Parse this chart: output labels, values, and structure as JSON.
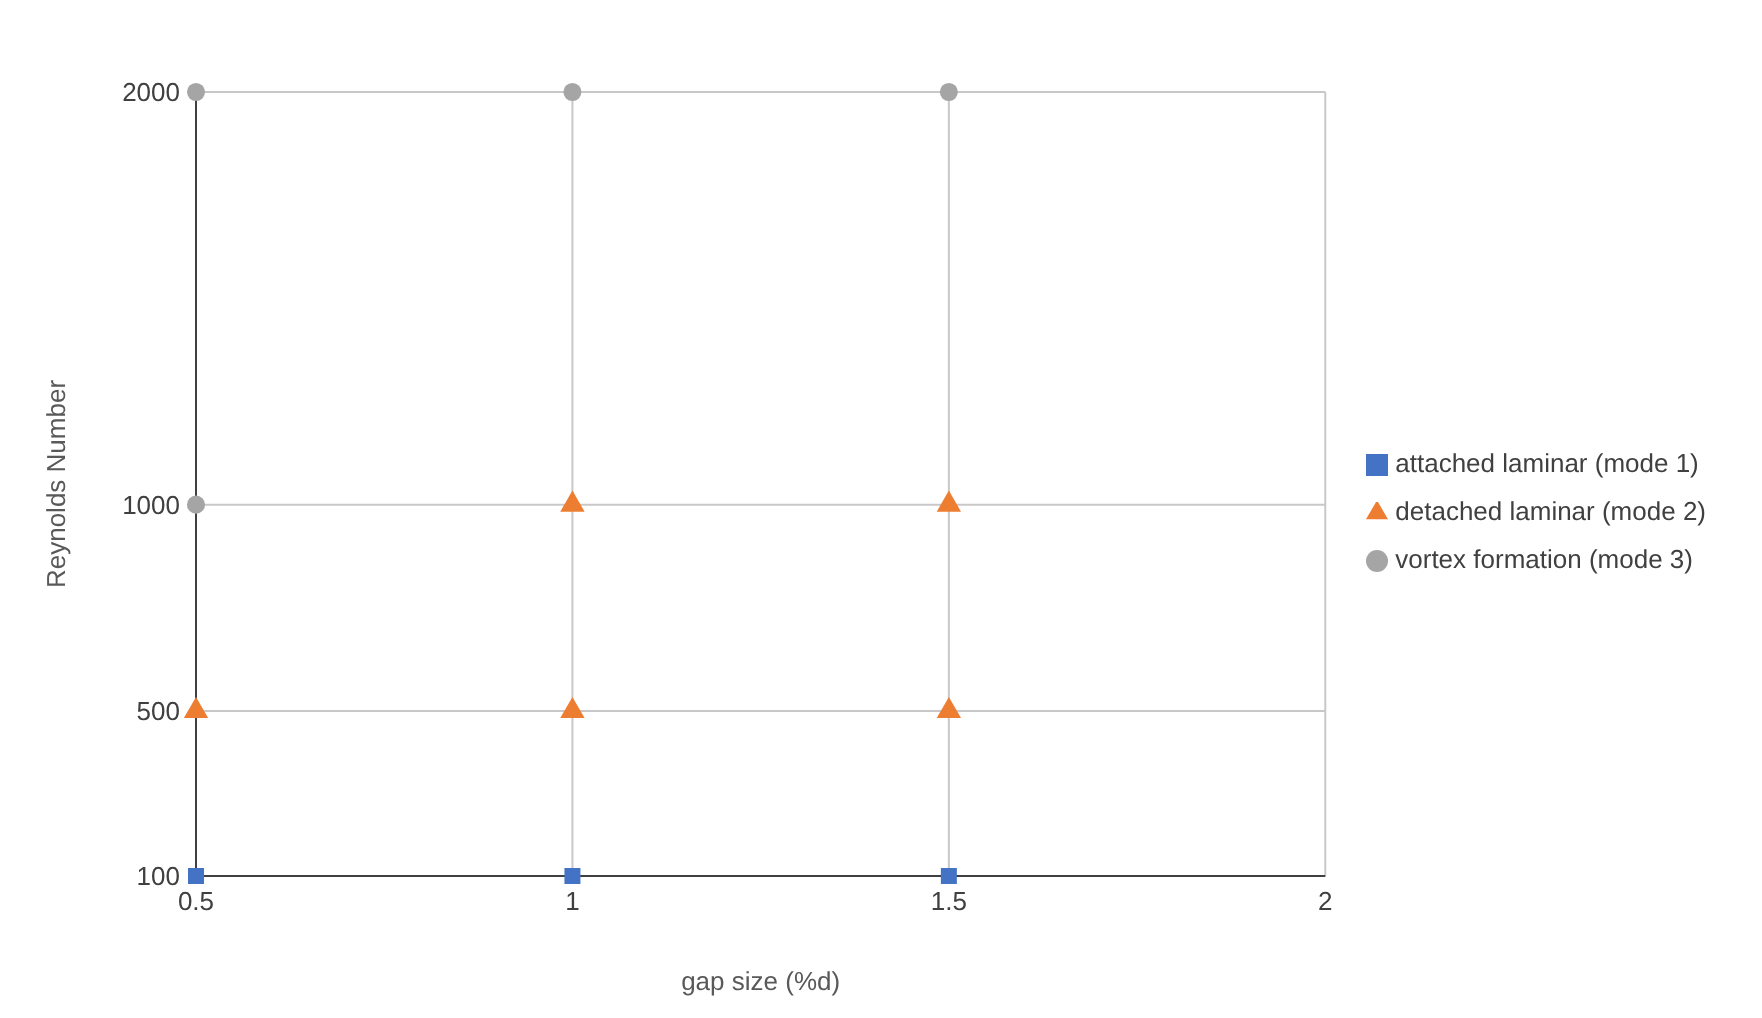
{
  "chart_data": {
    "type": "scatter",
    "xlabel": "gap size (%d)",
    "ylabel": "Reynolds Number",
    "xlim": [
      0.5,
      2
    ],
    "xticks": [
      0.5,
      1,
      1.5,
      2
    ],
    "ylim": [
      100,
      2000
    ],
    "yticks": [
      100,
      500,
      1000,
      2000
    ],
    "grid": true,
    "legend": "right",
    "series": [
      {
        "name": "attached laminar (mode 1)",
        "color": "#4472c4",
        "marker": "square",
        "x": [
          0.5,
          1,
          1.5
        ],
        "values": [
          100,
          100,
          100
        ]
      },
      {
        "name": "detached laminar (mode 2)",
        "color": "#ed7d31",
        "marker": "triangle",
        "x": [
          0.5,
          1,
          1.5,
          1,
          1.5
        ],
        "values": [
          500,
          500,
          500,
          1000,
          1000
        ]
      },
      {
        "name": "vortex formation (mode 3)",
        "color": "#a5a5a5",
        "marker": "circle",
        "x": [
          0.5,
          1,
          1.5,
          0.5
        ],
        "values": [
          2000,
          2000,
          2000,
          1000
        ]
      }
    ]
  }
}
